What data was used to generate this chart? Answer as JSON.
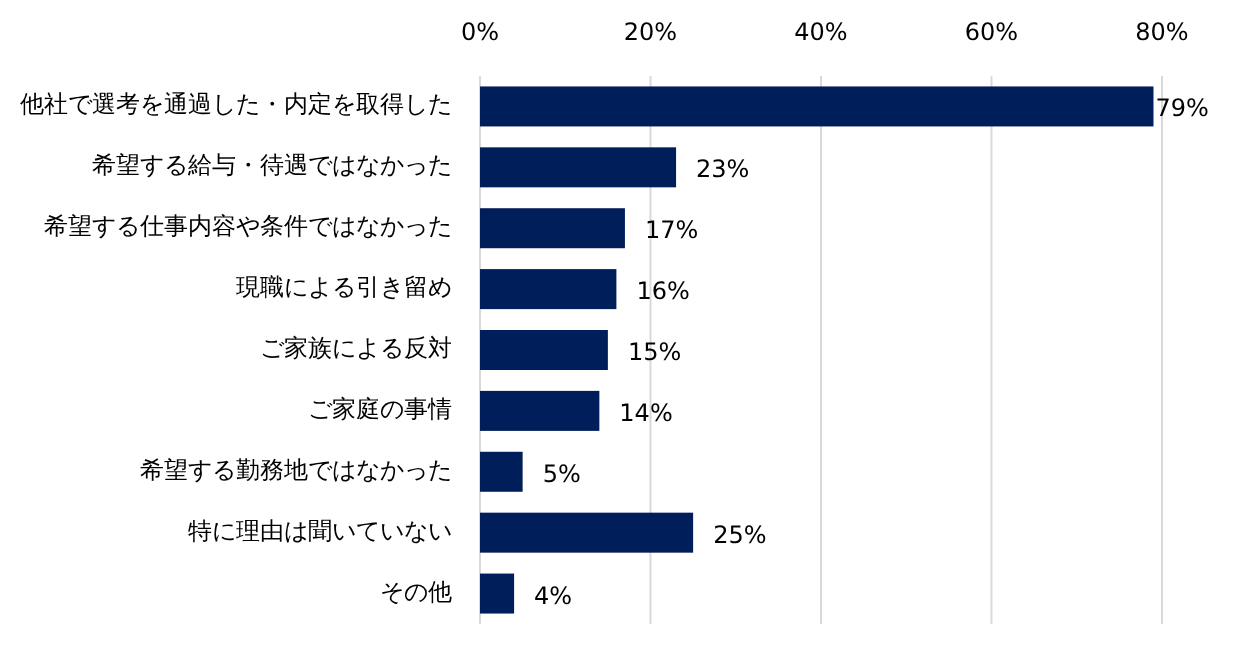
{
  "chart_data": {
    "type": "bar",
    "orientation": "horizontal",
    "categories": [
      "他社で選考を通過した・内定を取得した",
      "希望する給与・待遇ではなかった",
      "希望する仕事内容や条件ではなかった",
      "現職による引き留め",
      "ご家族による反対",
      "ご家庭の事情",
      "希望する勤務地ではなかった",
      "特に理由は聞いていない",
      "その他"
    ],
    "values": [
      79,
      23,
      17,
      16,
      15,
      14,
      5,
      25,
      4
    ],
    "value_labels": [
      "79%",
      "23%",
      "17%",
      "16%",
      "15%",
      "14%",
      "5%",
      "25%",
      "4%"
    ],
    "color": "#001e5a",
    "xlim": [
      0,
      80
    ],
    "xticks": [
      {
        "value": 0,
        "label": "0%"
      },
      {
        "value": 20,
        "label": "20%"
      },
      {
        "value": 40,
        "label": "40%"
      },
      {
        "value": 60,
        "label": "60%"
      },
      {
        "value": 80,
        "label": "80%"
      }
    ],
    "grid": "x"
  }
}
